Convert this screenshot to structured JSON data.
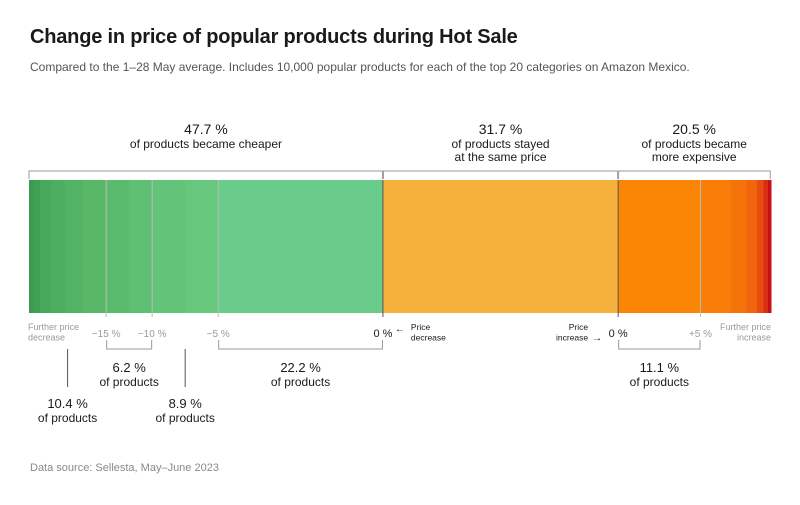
{
  "title": "Change in price of popular products during Hot Sale",
  "subtitle": "Compared to the 1–28 May average. Includes 10,000 popular products for each of the top 20 categories on Amazon Mexico.",
  "source": "Data source: Sellesta, May–June 2023",
  "colors": {
    "decrease_light": "#69cc8a",
    "decrease_dark": "#3d9a50",
    "same": "#f5b13c",
    "increase_light": "#fb8505",
    "increase_dark": "#d0101a"
  },
  "chart_data": {
    "type": "bar",
    "orientation": "horizontal-stacked-100",
    "groups": [
      {
        "key": "cheaper",
        "pct_label": "47.7 %",
        "label_lines": [
          "of products became cheaper"
        ],
        "value": 47.7
      },
      {
        "key": "same",
        "pct_label": "31.7 %",
        "label_lines": [
          "of products stayed",
          "at the same price"
        ],
        "value": 31.7
      },
      {
        "key": "expensive",
        "pct_label": "20.5 %",
        "label_lines": [
          "of products became",
          "more expensive"
        ],
        "value": 20.5
      }
    ],
    "axis": {
      "left_end_lines": [
        "Further price",
        "decrease"
      ],
      "right_end_lines": [
        "Further price",
        "increase"
      ],
      "ticks": [
        {
          "label": "−15 %",
          "pos": 10.4,
          "style": "muted"
        },
        {
          "label": "−10 %",
          "pos": 16.6,
          "style": "muted"
        },
        {
          "label": "−5 %",
          "pos": 25.5,
          "style": "muted"
        },
        {
          "label": "0 %",
          "pos": 47.7,
          "style": "strong"
        },
        {
          "label": "0 %",
          "pos": 79.4,
          "style": "strong"
        },
        {
          "label": "+5 %",
          "pos": 90.5,
          "style": "muted"
        }
      ],
      "price_decrease_lines": [
        "Price",
        "decrease"
      ],
      "price_increase_lines": [
        "Price",
        "increase"
      ]
    },
    "segments": [
      {
        "pct_label": "10.4 %",
        "sub": "of products",
        "value": 10.4,
        "from": 0,
        "to": 10.4,
        "marker": "line",
        "row": 2
      },
      {
        "pct_label": "6.2 %",
        "sub": "of products",
        "value": 6.2,
        "from": 10.4,
        "to": 16.6,
        "marker": "bracket",
        "row": 1
      },
      {
        "pct_label": "8.9 %",
        "sub": "of products",
        "value": 8.9,
        "from": 16.6,
        "to": 25.5,
        "marker": "line",
        "row": 2
      },
      {
        "pct_label": "22.2 %",
        "sub": "of products",
        "value": 22.2,
        "from": 25.5,
        "to": 47.7,
        "marker": "bracket",
        "row": 1
      },
      {
        "pct_label": "11.1 %",
        "sub": "of products",
        "value": 11.1,
        "from": 79.4,
        "to": 90.5,
        "marker": "bracket",
        "row": 1
      }
    ],
    "gradient_cheaper": [
      {
        "from": 0,
        "to": 0.6,
        "color": "#3d9a50"
      },
      {
        "from": 0.6,
        "to": 1.5,
        "color": "#42a055"
      },
      {
        "from": 1.5,
        "to": 3.0,
        "color": "#48a85b"
      },
      {
        "from": 3.0,
        "to": 4.8,
        "color": "#4eae60"
      },
      {
        "from": 4.8,
        "to": 7.2,
        "color": "#53b365"
      },
      {
        "from": 7.2,
        "to": 10.4,
        "color": "#58b868"
      },
      {
        "from": 10.4,
        "to": 13.5,
        "color": "#5bbb6d"
      },
      {
        "from": 13.5,
        "to": 16.6,
        "color": "#5fbf72"
      },
      {
        "from": 16.6,
        "to": 21.0,
        "color": "#63c378"
      },
      {
        "from": 21.0,
        "to": 25.5,
        "color": "#66c77d"
      },
      {
        "from": 25.5,
        "to": 47.7,
        "color": "#69cc8a"
      }
    ],
    "gradient_same": [
      {
        "from": 47.7,
        "to": 79.4,
        "color": "#f5b13c"
      }
    ],
    "gradient_expensive": [
      {
        "from": 79.4,
        "to": 90.5,
        "color": "#fb8505"
      },
      {
        "from": 90.5,
        "to": 94.6,
        "color": "#f97d07"
      },
      {
        "from": 94.6,
        "to": 96.7,
        "color": "#f6730a"
      },
      {
        "from": 96.7,
        "to": 98.1,
        "color": "#f2650d"
      },
      {
        "from": 98.1,
        "to": 99.0,
        "color": "#e84d10"
      },
      {
        "from": 99.0,
        "to": 99.6,
        "color": "#dc2e14"
      },
      {
        "from": 99.6,
        "to": 100,
        "color": "#c41018"
      }
    ]
  }
}
